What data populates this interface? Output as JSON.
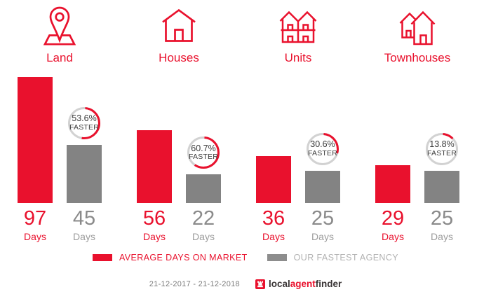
{
  "colors": {
    "red": "#e9112d",
    "gray": "#838383",
    "ring_gray": "#d2d2d2",
    "badge_text": "#3b3b3b",
    "legend_gray_text": "#b2b2b2",
    "value_gray_text": "#8a8a8a",
    "date_text": "#7c7c7c",
    "logo_dark": "#3a3536"
  },
  "chart_data": {
    "type": "bar",
    "categories": [
      "Land",
      "Houses",
      "Units",
      "Townhouses"
    ],
    "series": [
      {
        "name": "AVERAGE DAYS ON MARKET",
        "color": "#e9112d",
        "values": [
          97,
          56,
          36,
          29
        ]
      },
      {
        "name": "OUR FASTEST AGENCY",
        "color": "#838383",
        "values": [
          45,
          22,
          25,
          25
        ]
      }
    ],
    "unit": "Days",
    "badges": [
      {
        "percent": 53.6,
        "label": "53.6%",
        "sublabel": "FASTER"
      },
      {
        "percent": 60.7,
        "label": "60.7%",
        "sublabel": "FASTER"
      },
      {
        "percent": 30.6,
        "label": "30.6%",
        "sublabel": "FASTER"
      },
      {
        "percent": 13.8,
        "label": "13.8%",
        "sublabel": "FASTER"
      }
    ],
    "ylim": [
      0,
      97
    ],
    "grid": false,
    "legend_position": "bottom"
  },
  "legend": {
    "avg_label": "AVERAGE DAYS ON MARKET",
    "fastest_label": "OUR FASTEST AGENCY"
  },
  "footer": {
    "date_range": "21-12-2017 - 21-12-2018",
    "logo_local": "local",
    "logo_agent": "agent",
    "logo_finder": "finder"
  }
}
